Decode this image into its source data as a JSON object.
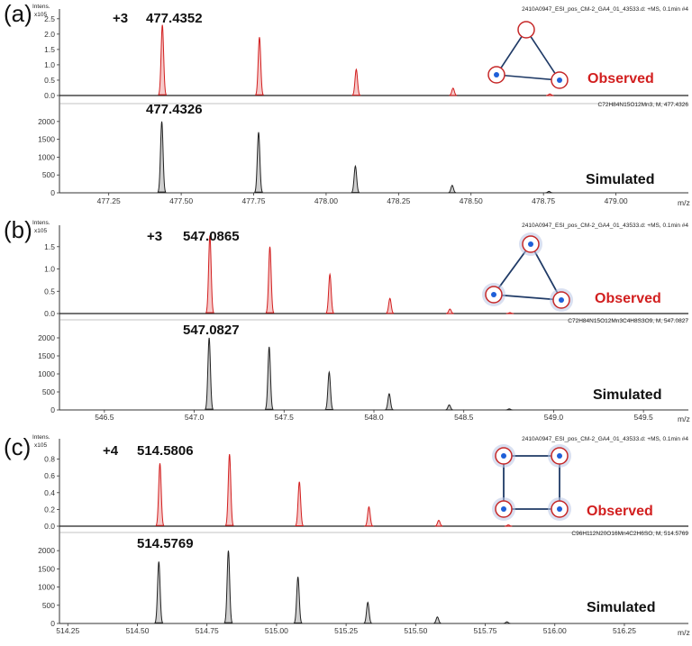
{
  "colors": {
    "observed": "#d21f1f",
    "observed_fill": "#f6c9c9",
    "simulated": "#222222",
    "simulated_fill": "#cfcfcf"
  },
  "panels": [
    {
      "label": "(a)",
      "shape": "triangle",
      "header": "2410A0947_ESI_pos_CM-2_GA4_01_43533.d: +MS, 0.1min #4",
      "charge": "+3",
      "obs_mz_label": "477.4352",
      "obs_legend": "Observed",
      "intens_label": "Intens.",
      "y_scale_label": "x105",
      "sim_header": "C72H84N15O12Mn3, M, 477.4326",
      "sim_mz_label": "477.4326",
      "sim_legend": "Simulated",
      "x_unit": "m/z"
    },
    {
      "label": "(b)",
      "shape": "triangle2",
      "header": "2410A0947_ESI_pos_CM-2_GA4_01_43533.d: +MS, 0.1min #4",
      "charge": "+3",
      "obs_mz_label": "547.0865",
      "obs_legend": "Observed",
      "intens_label": "Intens.",
      "y_scale_label": "x105",
      "sim_header": "C72H84N15O12Mn3C4H8S3O9, M, 547.0827",
      "sim_mz_label": "547.0827",
      "sim_legend": "Simulated",
      "x_unit": "m/z"
    },
    {
      "label": "(c)",
      "shape": "square",
      "header": "2410A0947_ESI_pos_CM-2_GA4_01_43533.d: +MS, 0.1min #4",
      "charge": "+4",
      "obs_mz_label": "514.5806",
      "obs_legend": "Observed",
      "intens_label": "Intens.",
      "y_scale_label": "x105",
      "sim_header": "C96H112N20O16Mn4C2H6SO, M, 514.5769",
      "sim_mz_label": "514.5769",
      "sim_legend": "Simulated",
      "x_unit": "m/z"
    }
  ],
  "chart_data": [
    {
      "type": "line",
      "title": "",
      "xlabel": "m/z",
      "xlim": [
        477.08,
        479.25
      ],
      "x_ticks": [
        "477.25",
        "477.50",
        "477.75",
        "478.00",
        "478.25",
        "478.50",
        "478.75",
        "479.00"
      ],
      "observed": {
        "ylabel": "Intens. x105",
        "ylim": [
          0,
          2.7
        ],
        "y_ticks": [
          "0.0",
          "0.5",
          "1.0",
          "1.5",
          "2.0",
          "2.5"
        ],
        "peaks": [
          {
            "x": 477.435,
            "y": 2.3
          },
          {
            "x": 477.77,
            "y": 1.9
          },
          {
            "x": 478.104,
            "y": 0.85
          },
          {
            "x": 478.438,
            "y": 0.24
          },
          {
            "x": 478.772,
            "y": 0.05
          }
        ]
      },
      "simulated": {
        "ylim": [
          0,
          2400
        ],
        "y_ticks": [
          "0",
          "500",
          "1000",
          "1500",
          "2000"
        ],
        "peaks": [
          {
            "x": 477.433,
            "y": 2000
          },
          {
            "x": 477.767,
            "y": 1700
          },
          {
            "x": 478.101,
            "y": 750
          },
          {
            "x": 478.435,
            "y": 210
          },
          {
            "x": 478.769,
            "y": 40
          }
        ]
      }
    },
    {
      "type": "line",
      "title": "",
      "xlabel": "m/z",
      "xlim": [
        546.25,
        549.75
      ],
      "x_ticks": [
        "546.5",
        "547.0",
        "547.5",
        "548.0",
        "548.5",
        "549.0",
        "549.5"
      ],
      "observed": {
        "ylabel": "Intens. x105",
        "ylim": [
          0,
          1.9
        ],
        "y_ticks": [
          "0.0",
          "0.5",
          "1.0",
          "1.5"
        ],
        "peaks": [
          {
            "x": 547.087,
            "y": 1.75
          },
          {
            "x": 547.421,
            "y": 1.5
          },
          {
            "x": 547.755,
            "y": 0.88
          },
          {
            "x": 548.089,
            "y": 0.34
          },
          {
            "x": 548.423,
            "y": 0.1
          },
          {
            "x": 548.757,
            "y": 0.02
          }
        ]
      },
      "simulated": {
        "ylim": [
          0,
          2400
        ],
        "y_ticks": [
          "0",
          "500",
          "1000",
          "1500",
          "2000"
        ],
        "peaks": [
          {
            "x": 547.083,
            "y": 2000
          },
          {
            "x": 547.417,
            "y": 1750
          },
          {
            "x": 547.751,
            "y": 1050
          },
          {
            "x": 548.085,
            "y": 450
          },
          {
            "x": 548.419,
            "y": 140
          },
          {
            "x": 548.753,
            "y": 30
          }
        ]
      }
    },
    {
      "type": "line",
      "title": "",
      "xlabel": "m/z",
      "xlim": [
        514.22,
        516.48
      ],
      "x_ticks": [
        "514.25",
        "514.50",
        "514.75",
        "515.00",
        "515.25",
        "515.50",
        "515.75",
        "516.00",
        "516.25"
      ],
      "observed": {
        "ylabel": "Intens. x105",
        "ylim": [
          0,
          1.0
        ],
        "y_ticks": [
          "0.0",
          "0.2",
          "0.4",
          "0.6",
          "0.8"
        ],
        "peaks": [
          {
            "x": 514.581,
            "y": 0.75
          },
          {
            "x": 514.831,
            "y": 0.86
          },
          {
            "x": 515.082,
            "y": 0.53
          },
          {
            "x": 515.332,
            "y": 0.23
          },
          {
            "x": 515.583,
            "y": 0.07
          },
          {
            "x": 515.833,
            "y": 0.015
          }
        ]
      },
      "simulated": {
        "ylim": [
          0,
          2400
        ],
        "y_ticks": [
          "0",
          "500",
          "1000",
          "1500",
          "2000"
        ],
        "peaks": [
          {
            "x": 514.577,
            "y": 1700
          },
          {
            "x": 514.827,
            "y": 2000
          },
          {
            "x": 515.077,
            "y": 1280
          },
          {
            "x": 515.328,
            "y": 580
          },
          {
            "x": 515.578,
            "y": 180
          },
          {
            "x": 515.828,
            "y": 45
          }
        ]
      }
    }
  ]
}
